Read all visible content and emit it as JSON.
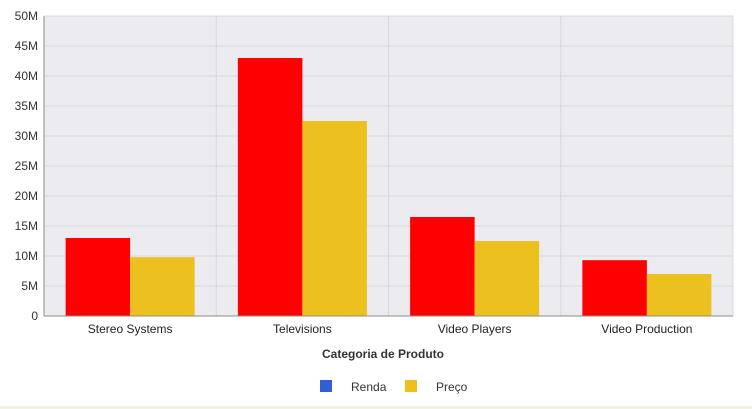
{
  "colors": {
    "plot_background": "#ebebf0",
    "grid": "#d7d7dc",
    "axis": "#8c8c8c",
    "renda_bar": "#ff0000",
    "preco_bar": "#ecc01e",
    "renda_legend": "#2f5fd0",
    "preco_legend": "#ecc01e"
  },
  "chart_data": {
    "type": "bar",
    "title": "",
    "xlabel": "Categoria de Produto",
    "ylabel": "",
    "categories": [
      "Stereo Systems",
      "Televisions",
      "Video Players",
      "Video Production"
    ],
    "series": [
      {
        "name": "Renda",
        "values": [
          13000000,
          43000000,
          16500000,
          9300000
        ]
      },
      {
        "name": "Preço",
        "values": [
          9800000,
          32500000,
          12500000,
          7000000
        ]
      }
    ],
    "ylim": [
      0,
      50000000
    ],
    "y_ticks": [
      0,
      5000000,
      10000000,
      15000000,
      20000000,
      25000000,
      30000000,
      35000000,
      40000000,
      45000000,
      50000000
    ],
    "y_tick_labels": [
      "0",
      "5M",
      "10M",
      "15M",
      "20M",
      "25M",
      "30M",
      "35M",
      "40M",
      "45M",
      "50M"
    ],
    "grid": true,
    "legend": {
      "placement": "bottom-center",
      "entries": [
        "Renda",
        "Preço"
      ]
    }
  }
}
